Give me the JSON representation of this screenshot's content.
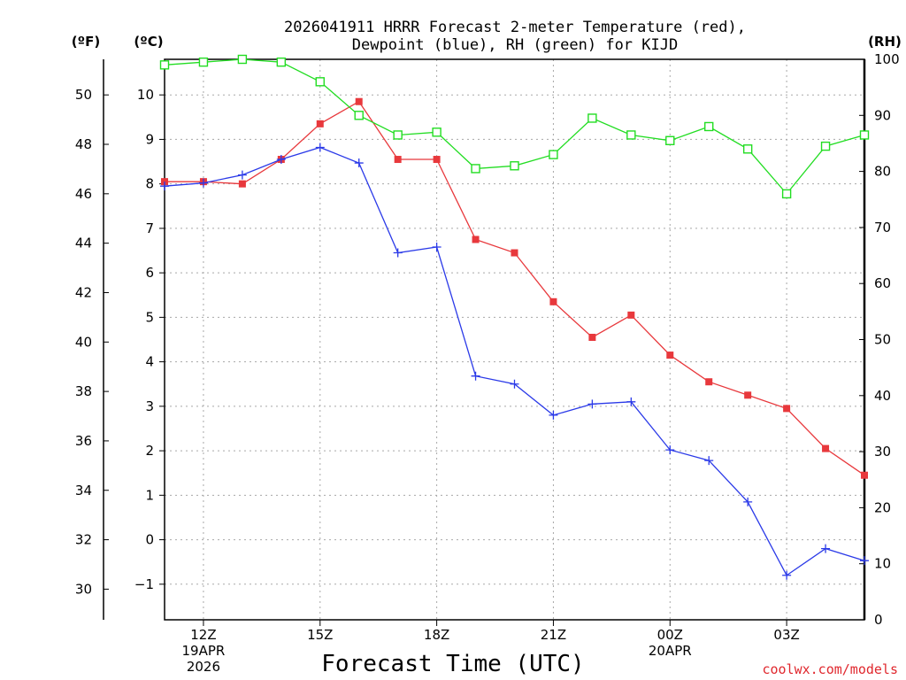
{
  "chart_data": {
    "type": "line",
    "title": [
      "2026041911 HRRR Forecast 2-meter Temperature (red),",
      "Dewpoint (blue), RH (green) for KIJD"
    ],
    "xlabel": "Forecast Time (UTC)",
    "unit_labels": {
      "fahrenheit": "(ºF)",
      "celsius": "(ºC)",
      "rh": "(RH)"
    },
    "x_hours": [
      11,
      12,
      13,
      14,
      15,
      16,
      17,
      18,
      19,
      20,
      21,
      22,
      23,
      24,
      25,
      26,
      27,
      28,
      29
    ],
    "x_ticks": [
      {
        "hour": 12,
        "lines": [
          "12Z",
          "19APR",
          "2026"
        ]
      },
      {
        "hour": 15,
        "lines": [
          "15Z"
        ]
      },
      {
        "hour": 18,
        "lines": [
          "18Z"
        ]
      },
      {
        "hour": 21,
        "lines": [
          "21Z"
        ]
      },
      {
        "hour": 24,
        "lines": [
          "00Z",
          "20APR"
        ]
      },
      {
        "hour": 27,
        "lines": [
          "03Z"
        ]
      }
    ],
    "celsius_axis": {
      "range": [
        -1.8,
        10.8
      ],
      "ticks": [
        "10",
        "9",
        "8",
        "7",
        "6",
        "5",
        "4",
        "3",
        "2",
        "1",
        "0",
        "−1"
      ]
    },
    "fahrenheit_axis": {
      "ticks": [
        "50",
        "48",
        "46",
        "44",
        "42",
        "40",
        "38",
        "36",
        "34",
        "32",
        "30"
      ]
    },
    "rh_axis": {
      "range": [
        0,
        100
      ],
      "ticks": [
        "100",
        "90",
        "80",
        "70",
        "60",
        "50",
        "40",
        "30",
        "20",
        "10",
        "0"
      ]
    },
    "grid": true,
    "series": [
      {
        "name": "Temperature",
        "axis": "celsius",
        "color": "#e8383c",
        "marker": "filled-square",
        "values": [
          8.05,
          8.05,
          8.0,
          8.55,
          9.35,
          9.85,
          8.55,
          8.55,
          6.75,
          6.45,
          5.35,
          4.55,
          5.05,
          4.15,
          3.55,
          3.25,
          2.95,
          2.05,
          1.45
        ]
      },
      {
        "name": "Dewpoint",
        "axis": "celsius",
        "color": "#2b3ae8",
        "marker": "plus",
        "values": [
          7.95,
          8.02,
          8.2,
          8.55,
          8.82,
          8.47,
          6.45,
          6.58,
          3.68,
          3.5,
          2.8,
          3.05,
          3.1,
          2.02,
          1.78,
          0.85,
          -0.8,
          -0.2,
          -0.47
        ]
      },
      {
        "name": "RH",
        "axis": "rh",
        "color": "#22dd22",
        "marker": "open-square",
        "values": [
          99,
          99.5,
          100,
          99.5,
          96,
          90,
          86.5,
          87,
          80.5,
          81,
          83,
          89.5,
          86.5,
          85.5,
          88,
          84,
          76,
          84.5,
          86.5
        ]
      }
    ],
    "credit": "coolwx.com/models"
  }
}
